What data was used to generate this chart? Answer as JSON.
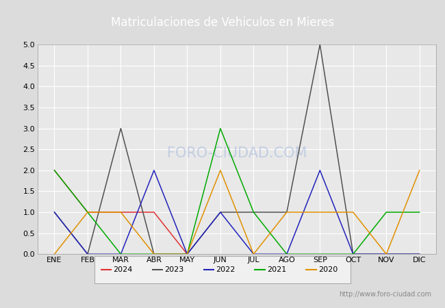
{
  "title": "Matriculaciones de Vehiculos en Mieres",
  "months": [
    "ENE",
    "FEB",
    "MAR",
    "ABR",
    "MAY",
    "JUN",
    "JUL",
    "AGO",
    "SEP",
    "OCT",
    "NOV",
    "DIC"
  ],
  "series": {
    "2024": [
      2,
      1,
      1,
      1,
      0,
      null,
      null,
      null,
      null,
      null,
      null,
      null
    ],
    "2023": [
      1,
      0,
      3,
      0,
      0,
      1,
      1,
      1,
      5,
      0,
      0,
      0
    ],
    "2022": [
      1,
      0,
      0,
      2,
      0,
      1,
      0,
      0,
      2,
      0,
      0,
      0
    ],
    "2021": [
      2,
      1,
      0,
      0,
      0,
      3,
      1,
      0,
      0,
      0,
      1,
      1
    ],
    "2020": [
      0,
      1,
      1,
      0,
      0,
      2,
      0,
      1,
      1,
      1,
      0,
      2
    ]
  },
  "colors": {
    "2024": "#e03030",
    "2023": "#505050",
    "2022": "#2222bb",
    "2021": "#00aa00",
    "2020": "#e09000"
  },
  "ylim": [
    0,
    5.0
  ],
  "yticks": [
    0.0,
    0.5,
    1.0,
    1.5,
    2.0,
    2.5,
    3.0,
    3.5,
    4.0,
    4.5,
    5.0
  ],
  "title_bg_color": "#4472c4",
  "title_text_color": "#ffffff",
  "plot_bg_color": "#e8e8e8",
  "grid_color": "#ffffff",
  "watermark_plot": "FORO-CIUDAD.COM",
  "watermark_footer": "http://www.foro-ciudad.com",
  "footer_bg_color": "#dcdcdc",
  "outer_bg_color": "#dcdcdc",
  "legend_order": [
    "2024",
    "2023",
    "2022",
    "2021",
    "2020"
  ],
  "title_fontsize": 12,
  "tick_fontsize": 8,
  "legend_fontsize": 8
}
